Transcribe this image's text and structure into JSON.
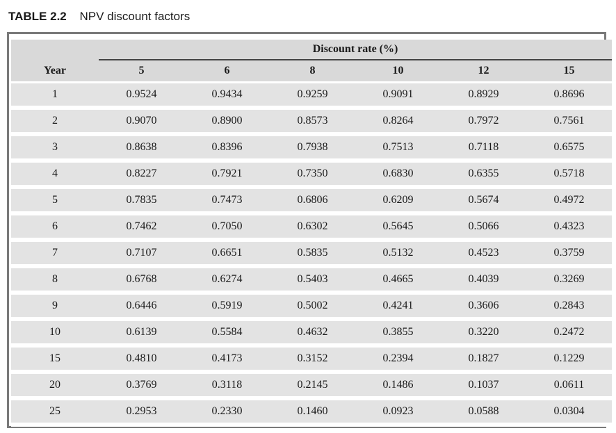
{
  "caption": {
    "label": "TABLE 2.2",
    "title": "NPV discount factors"
  },
  "table": {
    "group_header": "Discount rate (%)",
    "year_header": "Year",
    "rates": [
      "5",
      "6",
      "8",
      "10",
      "12",
      "15"
    ],
    "rows": [
      {
        "year": "1",
        "values": [
          "0.9524",
          "0.9434",
          "0.9259",
          "0.9091",
          "0.8929",
          "0.8696"
        ]
      },
      {
        "year": "2",
        "values": [
          "0.9070",
          "0.8900",
          "0.8573",
          "0.8264",
          "0.7972",
          "0.7561"
        ]
      },
      {
        "year": "3",
        "values": [
          "0.8638",
          "0.8396",
          "0.7938",
          "0.7513",
          "0.7118",
          "0.6575"
        ]
      },
      {
        "year": "4",
        "values": [
          "0.8227",
          "0.7921",
          "0.7350",
          "0.6830",
          "0.6355",
          "0.5718"
        ]
      },
      {
        "year": "5",
        "values": [
          "0.7835",
          "0.7473",
          "0.6806",
          "0.6209",
          "0.5674",
          "0.4972"
        ]
      },
      {
        "year": "6",
        "values": [
          "0.7462",
          "0.7050",
          "0.6302",
          "0.5645",
          "0.5066",
          "0.4323"
        ]
      },
      {
        "year": "7",
        "values": [
          "0.7107",
          "0.6651",
          "0.5835",
          "0.5132",
          "0.4523",
          "0.3759"
        ]
      },
      {
        "year": "8",
        "values": [
          "0.6768",
          "0.6274",
          "0.5403",
          "0.4665",
          "0.4039",
          "0.3269"
        ]
      },
      {
        "year": "9",
        "values": [
          "0.6446",
          "0.5919",
          "0.5002",
          "0.4241",
          "0.3606",
          "0.2843"
        ]
      },
      {
        "year": "10",
        "values": [
          "0.6139",
          "0.5584",
          "0.4632",
          "0.3855",
          "0.3220",
          "0.2472"
        ]
      },
      {
        "year": "15",
        "values": [
          "0.4810",
          "0.4173",
          "0.3152",
          "0.2394",
          "0.1827",
          "0.1229"
        ]
      },
      {
        "year": "20",
        "values": [
          "0.3769",
          "0.3118",
          "0.2145",
          "0.1486",
          "0.1037",
          "0.0611"
        ]
      },
      {
        "year": "25",
        "values": [
          "0.2953",
          "0.2330",
          "0.1460",
          "0.0923",
          "0.0588",
          "0.0304"
        ]
      }
    ]
  },
  "colors": {
    "header_fill": "#d9d9d9",
    "row_fill": "#e3e3e3",
    "frame_border": "#7a7a7a",
    "text": "#1a1a1a"
  }
}
